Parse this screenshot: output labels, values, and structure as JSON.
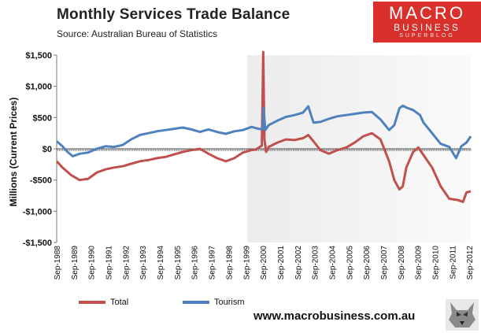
{
  "header": {
    "title": "Monthly  Services Trade  Balance",
    "source": "Source:  Australian Bureau of Statistics"
  },
  "logo": {
    "line1": "MACRO",
    "line2": "BUSINESS",
    "line3": "SUPERBLOG"
  },
  "footer": {
    "url": "www.macrobusiness.com.au"
  },
  "chart_data": {
    "type": "line",
    "ylabel": "Millions (Current Prices)",
    "xlabel": "",
    "ylim": [
      -1500,
      1500
    ],
    "yticks": [
      {
        "v": 1500,
        "label": "$1,500"
      },
      {
        "v": 1000,
        "label": "$1,000"
      },
      {
        "v": 500,
        "label": "$500"
      },
      {
        "v": 0,
        "label": "$0"
      },
      {
        "v": -500,
        "label": "-$500"
      },
      {
        "v": -1000,
        "label": "-$1,000"
      },
      {
        "v": -1500,
        "label": "-$1,500"
      }
    ],
    "x_range": [
      1988.667,
      2012.75
    ],
    "x_ticks": [
      "Sep-1988",
      "Sep-1989",
      "Sep-1990",
      "Sep-1991",
      "Sep-1992",
      "Sep-1993",
      "Sep-1994",
      "Sep-1995",
      "Sep-1996",
      "Sep-1997",
      "Sep-1998",
      "Sep-1999",
      "Sep-2000",
      "Sep-2001",
      "Sep-2002",
      "Sep-2003",
      "Sep-2004",
      "Sep-2005",
      "Sep-2006",
      "Sep-2007",
      "Sep-2008",
      "Sep-2009",
      "Sep-2010",
      "Sep-2011",
      "Sep-2012"
    ],
    "shaded_region": [
      1999.75,
      2012.75
    ],
    "grid": false,
    "legend_position": "bottom",
    "series": [
      {
        "name": "Total",
        "color": "#c0504d",
        "points": [
          [
            1988.67,
            -200
          ],
          [
            1989.0,
            -300
          ],
          [
            1989.5,
            -420
          ],
          [
            1990.0,
            -500
          ],
          [
            1990.5,
            -480
          ],
          [
            1991.0,
            -380
          ],
          [
            1991.5,
            -330
          ],
          [
            1992.0,
            -300
          ],
          [
            1992.5,
            -280
          ],
          [
            1993.0,
            -240
          ],
          [
            1993.5,
            -200
          ],
          [
            1994.0,
            -180
          ],
          [
            1994.5,
            -150
          ],
          [
            1995.0,
            -130
          ],
          [
            1995.5,
            -90
          ],
          [
            1996.0,
            -50
          ],
          [
            1996.5,
            -20
          ],
          [
            1997.0,
            0
          ],
          [
            1997.5,
            -80
          ],
          [
            1998.0,
            -150
          ],
          [
            1998.5,
            -200
          ],
          [
            1999.0,
            -150
          ],
          [
            1999.5,
            -60
          ],
          [
            2000.0,
            -20
          ],
          [
            2000.25,
            -10
          ],
          [
            2000.6,
            50
          ],
          [
            2000.68,
            1620
          ],
          [
            2000.75,
            150
          ],
          [
            2000.85,
            -50
          ],
          [
            2001.0,
            30
          ],
          [
            2001.5,
            100
          ],
          [
            2002.0,
            150
          ],
          [
            2002.5,
            140
          ],
          [
            2003.0,
            170
          ],
          [
            2003.3,
            220
          ],
          [
            2003.6,
            120
          ],
          [
            2004.0,
            -20
          ],
          [
            2004.5,
            -80
          ],
          [
            2005.0,
            -20
          ],
          [
            2005.5,
            20
          ],
          [
            2006.0,
            100
          ],
          [
            2006.5,
            200
          ],
          [
            2007.0,
            250
          ],
          [
            2007.5,
            150
          ],
          [
            2008.0,
            -200
          ],
          [
            2008.3,
            -500
          ],
          [
            2008.6,
            -650
          ],
          [
            2008.8,
            -600
          ],
          [
            2009.0,
            -300
          ],
          [
            2009.4,
            -50
          ],
          [
            2009.7,
            20
          ],
          [
            2010.0,
            -100
          ],
          [
            2010.5,
            -300
          ],
          [
            2011.0,
            -600
          ],
          [
            2011.5,
            -800
          ],
          [
            2012.0,
            -820
          ],
          [
            2012.3,
            -850
          ],
          [
            2012.5,
            -700
          ],
          [
            2012.75,
            -680
          ]
        ]
      },
      {
        "name": "Tourism",
        "color": "#4f81bd",
        "points": [
          [
            1988.67,
            120
          ],
          [
            1989.0,
            40
          ],
          [
            1989.3,
            -50
          ],
          [
            1989.6,
            -120
          ],
          [
            1990.0,
            -80
          ],
          [
            1990.5,
            -60
          ],
          [
            1991.0,
            0
          ],
          [
            1991.5,
            40
          ],
          [
            1992.0,
            30
          ],
          [
            1992.5,
            60
          ],
          [
            1993.0,
            150
          ],
          [
            1993.5,
            220
          ],
          [
            1994.0,
            250
          ],
          [
            1994.5,
            280
          ],
          [
            1995.0,
            300
          ],
          [
            1995.5,
            320
          ],
          [
            1996.0,
            340
          ],
          [
            1996.5,
            310
          ],
          [
            1997.0,
            270
          ],
          [
            1997.5,
            310
          ],
          [
            1998.0,
            270
          ],
          [
            1998.5,
            240
          ],
          [
            1999.0,
            280
          ],
          [
            1999.5,
            300
          ],
          [
            2000.0,
            350
          ],
          [
            2000.4,
            320
          ],
          [
            2000.65,
            310
          ],
          [
            2000.7,
            650
          ],
          [
            2000.8,
            300
          ],
          [
            2001.0,
            380
          ],
          [
            2001.5,
            450
          ],
          [
            2002.0,
            510
          ],
          [
            2002.5,
            540
          ],
          [
            2003.0,
            580
          ],
          [
            2003.3,
            680
          ],
          [
            2003.6,
            420
          ],
          [
            2004.0,
            430
          ],
          [
            2004.5,
            480
          ],
          [
            2005.0,
            520
          ],
          [
            2005.5,
            540
          ],
          [
            2006.0,
            560
          ],
          [
            2006.5,
            580
          ],
          [
            2007.0,
            590
          ],
          [
            2007.5,
            470
          ],
          [
            2008.0,
            300
          ],
          [
            2008.3,
            380
          ],
          [
            2008.6,
            650
          ],
          [
            2008.8,
            690
          ],
          [
            2009.0,
            660
          ],
          [
            2009.4,
            620
          ],
          [
            2009.8,
            540
          ],
          [
            2010.0,
            420
          ],
          [
            2010.5,
            250
          ],
          [
            2011.0,
            80
          ],
          [
            2011.5,
            30
          ],
          [
            2011.9,
            -150
          ],
          [
            2012.2,
            40
          ],
          [
            2012.5,
            100
          ],
          [
            2012.75,
            200
          ]
        ]
      }
    ]
  }
}
